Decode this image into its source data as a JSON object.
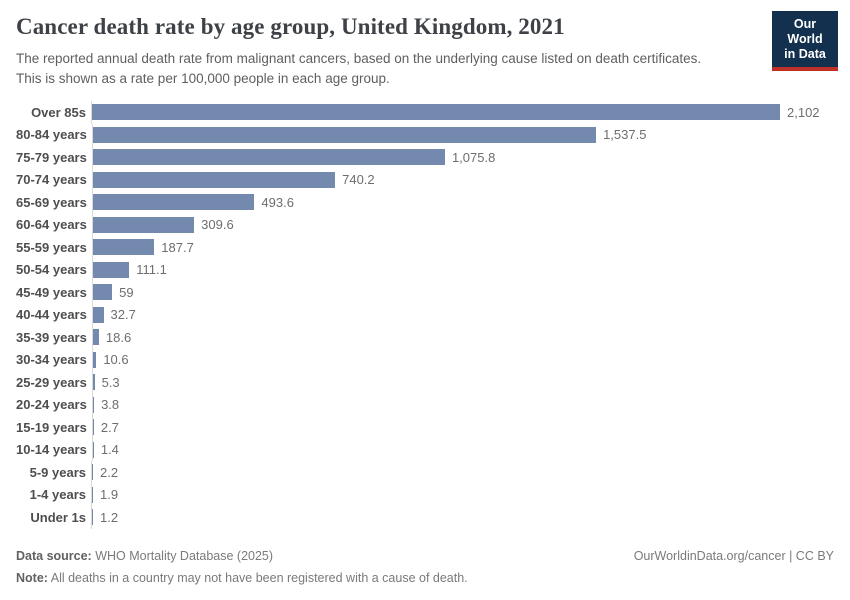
{
  "header": {
    "title": "Cancer death rate by age group, United Kingdom, 2021",
    "subtitle": "The reported annual death rate from malignant cancers, based on the underlying cause listed on death certificates. This is shown as a rate per 100,000 people in each age group.",
    "logo": {
      "line1": "Our World",
      "line2": "in Data",
      "bg_color": "#13304e",
      "accent_color": "#bf3127"
    }
  },
  "chart_data": {
    "type": "bar",
    "orientation": "horizontal",
    "title": "Cancer death rate by age group, United Kingdom, 2021",
    "xlabel": "",
    "ylabel": "",
    "xlim": [
      0,
      2102
    ],
    "grid": false,
    "bar_color": "#7389ae",
    "categories": [
      "Over 85s",
      "80-84 years",
      "75-79 years",
      "70-74 years",
      "65-69 years",
      "60-64 years",
      "55-59 years",
      "50-54 years",
      "45-49 years",
      "40-44 years",
      "35-39 years",
      "30-34 years",
      "25-29 years",
      "20-24 years",
      "15-19 years",
      "10-14 years",
      "5-9 years",
      "1-4 years",
      "Under 1s"
    ],
    "values": [
      2102,
      1537.5,
      1075.8,
      740.2,
      493.6,
      309.6,
      187.7,
      111.1,
      59,
      32.7,
      18.6,
      10.6,
      5.3,
      3.8,
      2.7,
      1.4,
      2.2,
      1.9,
      1.2
    ],
    "value_labels": [
      "2,102",
      "1,537.5",
      "1,075.8",
      "740.2",
      "493.6",
      "309.6",
      "187.7",
      "111.1",
      "59",
      "32.7",
      "18.6",
      "10.6",
      "5.3",
      "3.8",
      "2.7",
      "1.4",
      "2.2",
      "1.9",
      "1.2"
    ]
  },
  "footer": {
    "source_label": "Data source:",
    "source_text": " WHO Mortality Database (2025)",
    "note_label": "Note:",
    "note_text": " All deaths in a country may not have been registered with a cause of death.",
    "right_text": "OurWorldinData.org/cancer | CC BY"
  }
}
